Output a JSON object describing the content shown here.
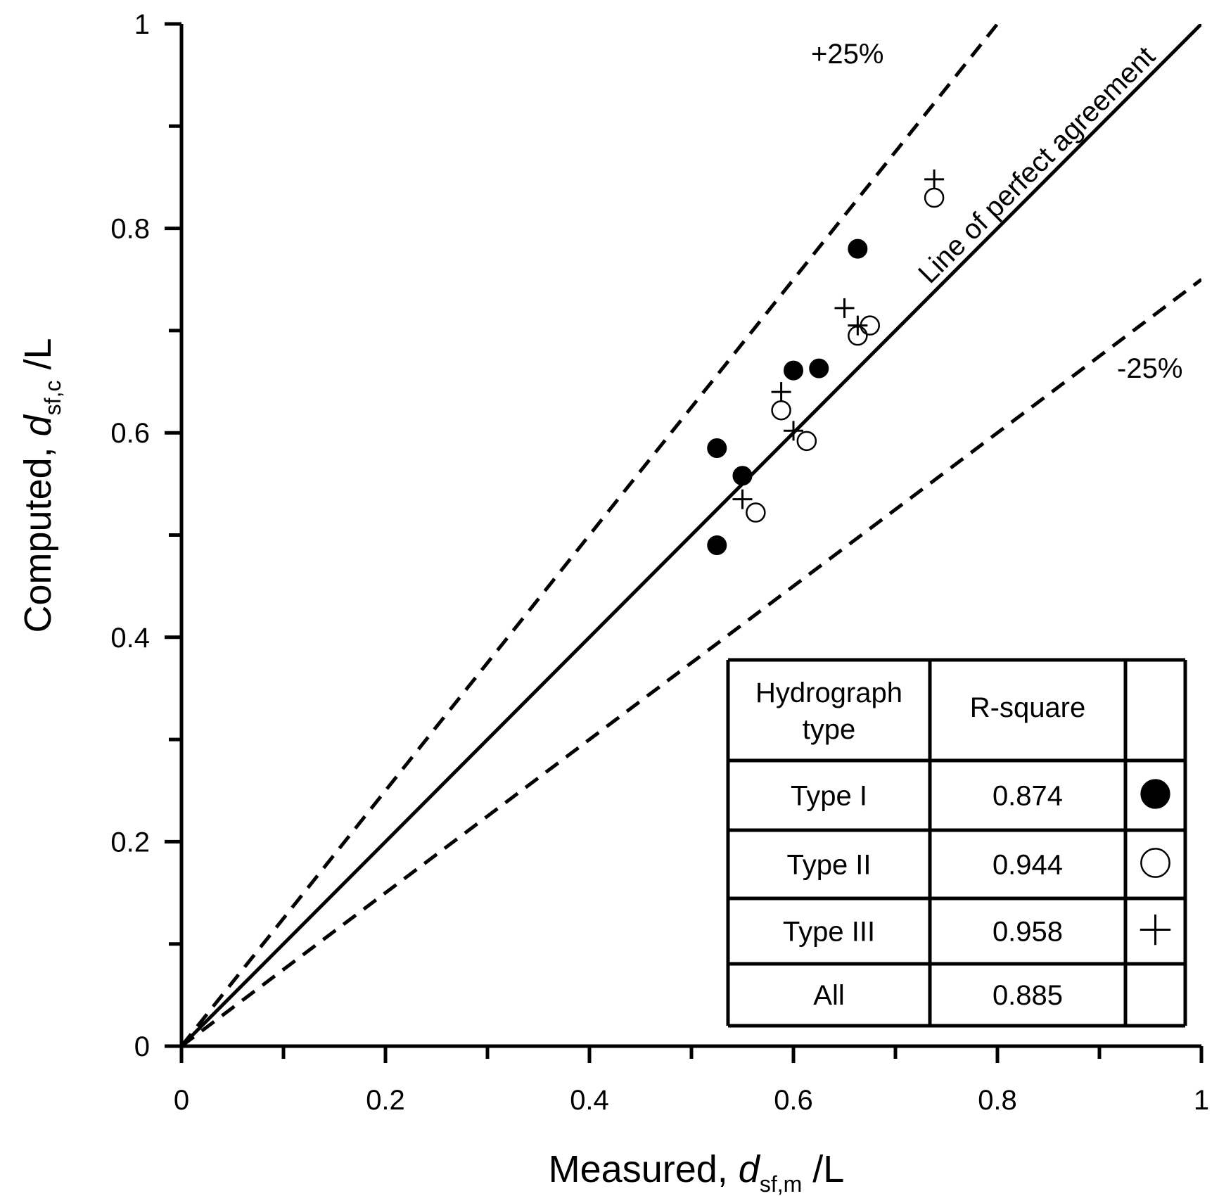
{
  "chart_data": {
    "type": "scatter",
    "xlim": [
      0,
      1
    ],
    "ylim": [
      0,
      1
    ],
    "grid": false,
    "x_major_ticks": [
      0,
      0.2,
      0.4,
      0.6,
      0.8,
      1
    ],
    "x_tick_labels": [
      "0",
      "0.2",
      "0.4",
      "0.6",
      "0.8",
      "1"
    ],
    "y_major_ticks": [
      0,
      0.2,
      0.4,
      0.6,
      0.8,
      1
    ],
    "y_tick_labels": [
      "0",
      "0.2",
      "0.4",
      "0.6",
      "0.8",
      "1"
    ],
    "minor_ticks": [
      0.1,
      0.3,
      0.5,
      0.7,
      0.9
    ],
    "xlabel": {
      "prefix": "Measured, ",
      "var": "d",
      "sub": "sf,m",
      "suffix": " /L"
    },
    "ylabel": {
      "prefix": "Computed, ",
      "var": "d",
      "sub": "sf,c",
      "suffix": " /L"
    },
    "reference_lines": [
      {
        "name": "Line of perfect agreement",
        "slope": 1.0,
        "style": "solid"
      },
      {
        "name": "+25%",
        "slope": 1.25,
        "style": "dashed"
      },
      {
        "name": "-25%",
        "slope": 0.75,
        "style": "dashed"
      }
    ],
    "annotations": [
      "+25%",
      "-25%",
      "Line of perfect agreement"
    ],
    "series": [
      {
        "name": "Type I",
        "marker": "filled-circle",
        "points": [
          {
            "x": 0.525,
            "y": 0.585
          },
          {
            "x": 0.525,
            "y": 0.49
          },
          {
            "x": 0.55,
            "y": 0.558
          },
          {
            "x": 0.6,
            "y": 0.661
          },
          {
            "x": 0.625,
            "y": 0.663
          },
          {
            "x": 0.663,
            "y": 0.78
          }
        ]
      },
      {
        "name": "Type II",
        "marker": "open-circle",
        "points": [
          {
            "x": 0.563,
            "y": 0.522
          },
          {
            "x": 0.588,
            "y": 0.622
          },
          {
            "x": 0.613,
            "y": 0.592
          },
          {
            "x": 0.663,
            "y": 0.695
          },
          {
            "x": 0.675,
            "y": 0.705
          },
          {
            "x": 0.738,
            "y": 0.83
          }
        ]
      },
      {
        "name": "Type III",
        "marker": "plus",
        "points": [
          {
            "x": 0.55,
            "y": 0.535
          },
          {
            "x": 0.588,
            "y": 0.64
          },
          {
            "x": 0.6,
            "y": 0.602
          },
          {
            "x": 0.65,
            "y": 0.722
          },
          {
            "x": 0.663,
            "y": 0.705
          },
          {
            "x": 0.738,
            "y": 0.848
          }
        ]
      }
    ],
    "legend_table": {
      "header_col1": [
        "Hydrograph",
        "type"
      ],
      "header_col2": "R-square",
      "rows": [
        {
          "type": "Type I",
          "r_square": "0.874",
          "marker": "filled-circle"
        },
        {
          "type": "Type II",
          "r_square": "0.944",
          "marker": "open-circle"
        },
        {
          "type": "Type III",
          "r_square": "0.958",
          "marker": "plus"
        },
        {
          "type": "All",
          "r_square": "0.885",
          "marker": "none"
        }
      ]
    }
  }
}
